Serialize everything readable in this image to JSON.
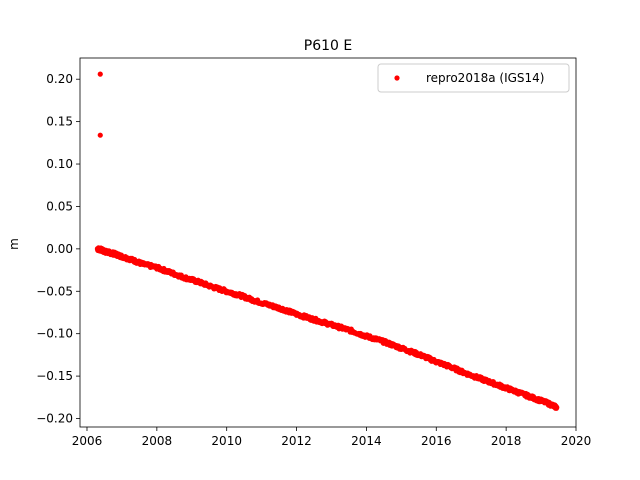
{
  "chart_data": {
    "type": "scatter",
    "title": "P610 E",
    "xlabel": "",
    "ylabel": "m",
    "xlim": [
      2005.8,
      2020.0
    ],
    "ylim": [
      -0.21,
      0.225
    ],
    "xticks": [
      2006,
      2008,
      2010,
      2012,
      2014,
      2016,
      2018,
      2020
    ],
    "xtick_labels": [
      "2006",
      "2008",
      "2010",
      "2012",
      "2014",
      "2016",
      "2018",
      "2020"
    ],
    "yticks": [
      -0.2,
      -0.15,
      -0.1,
      -0.05,
      0.0,
      0.05,
      0.1,
      0.15,
      0.2
    ],
    "ytick_labels": [
      "−0.20",
      "−0.15",
      "−0.10",
      "−0.05",
      "0.00",
      "0.05",
      "0.10",
      "0.15",
      "0.20"
    ],
    "grid": false,
    "legend_position": "top-right",
    "series": [
      {
        "name": "repro2018a (IGS14)",
        "color": "#ff0000",
        "marker": "circle",
        "x": [
          2006.38,
          2006.38,
          2006.3,
          2006.4,
          2006.5,
          2006.6,
          2006.8,
          2007.0,
          2007.3,
          2007.6,
          2008.0,
          2008.4,
          2008.8,
          2009.2,
          2009.6,
          2010.0,
          2010.4,
          2010.8,
          2011.2,
          2011.6,
          2012.0,
          2012.4,
          2012.8,
          2013.2,
          2013.6,
          2014.0,
          2014.4,
          2014.8,
          2015.2,
          2015.6,
          2016.0,
          2016.4,
          2016.8,
          2017.2,
          2017.6,
          2018.0,
          2018.4,
          2018.8,
          2019.2,
          2019.45
        ],
        "y": [
          0.206,
          0.134,
          0.0,
          -0.001,
          -0.003,
          -0.004,
          -0.006,
          -0.009,
          -0.013,
          -0.018,
          -0.022,
          -0.028,
          -0.034,
          -0.039,
          -0.045,
          -0.05,
          -0.055,
          -0.061,
          -0.066,
          -0.071,
          -0.077,
          -0.082,
          -0.087,
          -0.092,
          -0.097,
          -0.103,
          -0.108,
          -0.114,
          -0.12,
          -0.126,
          -0.133,
          -0.139,
          -0.146,
          -0.152,
          -0.158,
          -0.164,
          -0.17,
          -0.176,
          -0.182,
          -0.187
        ]
      }
    ]
  }
}
